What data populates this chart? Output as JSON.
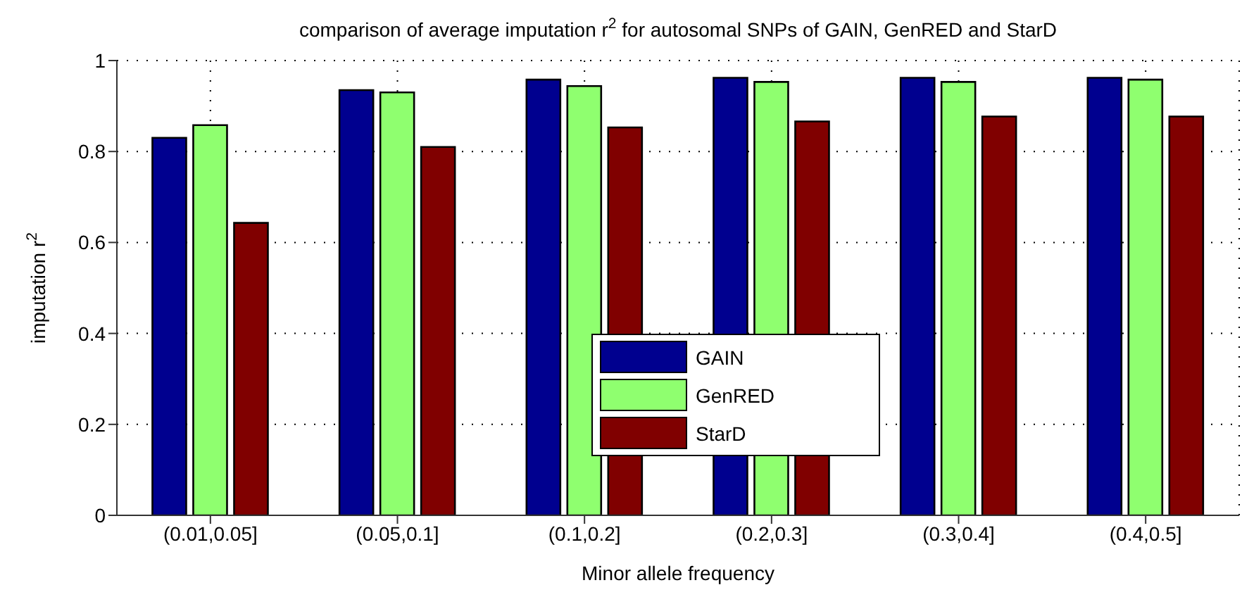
{
  "chart_data": {
    "type": "bar",
    "title": "comparison of average imputation r$^{2}$ for autosomal SNPs of GAIN, GenRED and StarD",
    "xlabel": "Minor allele frequency",
    "ylabel": "imputation r$^{2}$",
    "categories": [
      "(0.01,0.05]",
      "(0.05,0.1]",
      "(0.1,0.2]",
      "(0.2,0.3]",
      "(0.3,0.4]",
      "(0.4,0.5]"
    ],
    "series": [
      {
        "name": "GAIN",
        "color": "#00008f",
        "values": [
          0.83,
          0.935,
          0.958,
          0.962,
          0.962,
          0.962
        ]
      },
      {
        "name": "GenRED",
        "color": "#8fff6f",
        "values": [
          0.858,
          0.93,
          0.944,
          0.953,
          0.953,
          0.958
        ]
      },
      {
        "name": "StarD",
        "color": "#800000",
        "values": [
          0.643,
          0.81,
          0.853,
          0.866,
          0.877,
          0.877
        ]
      }
    ],
    "ylim": [
      0,
      1
    ],
    "yticks": [
      0,
      0.2,
      0.4,
      0.6,
      0.8,
      1
    ],
    "grid": true,
    "legend": "bottom"
  }
}
